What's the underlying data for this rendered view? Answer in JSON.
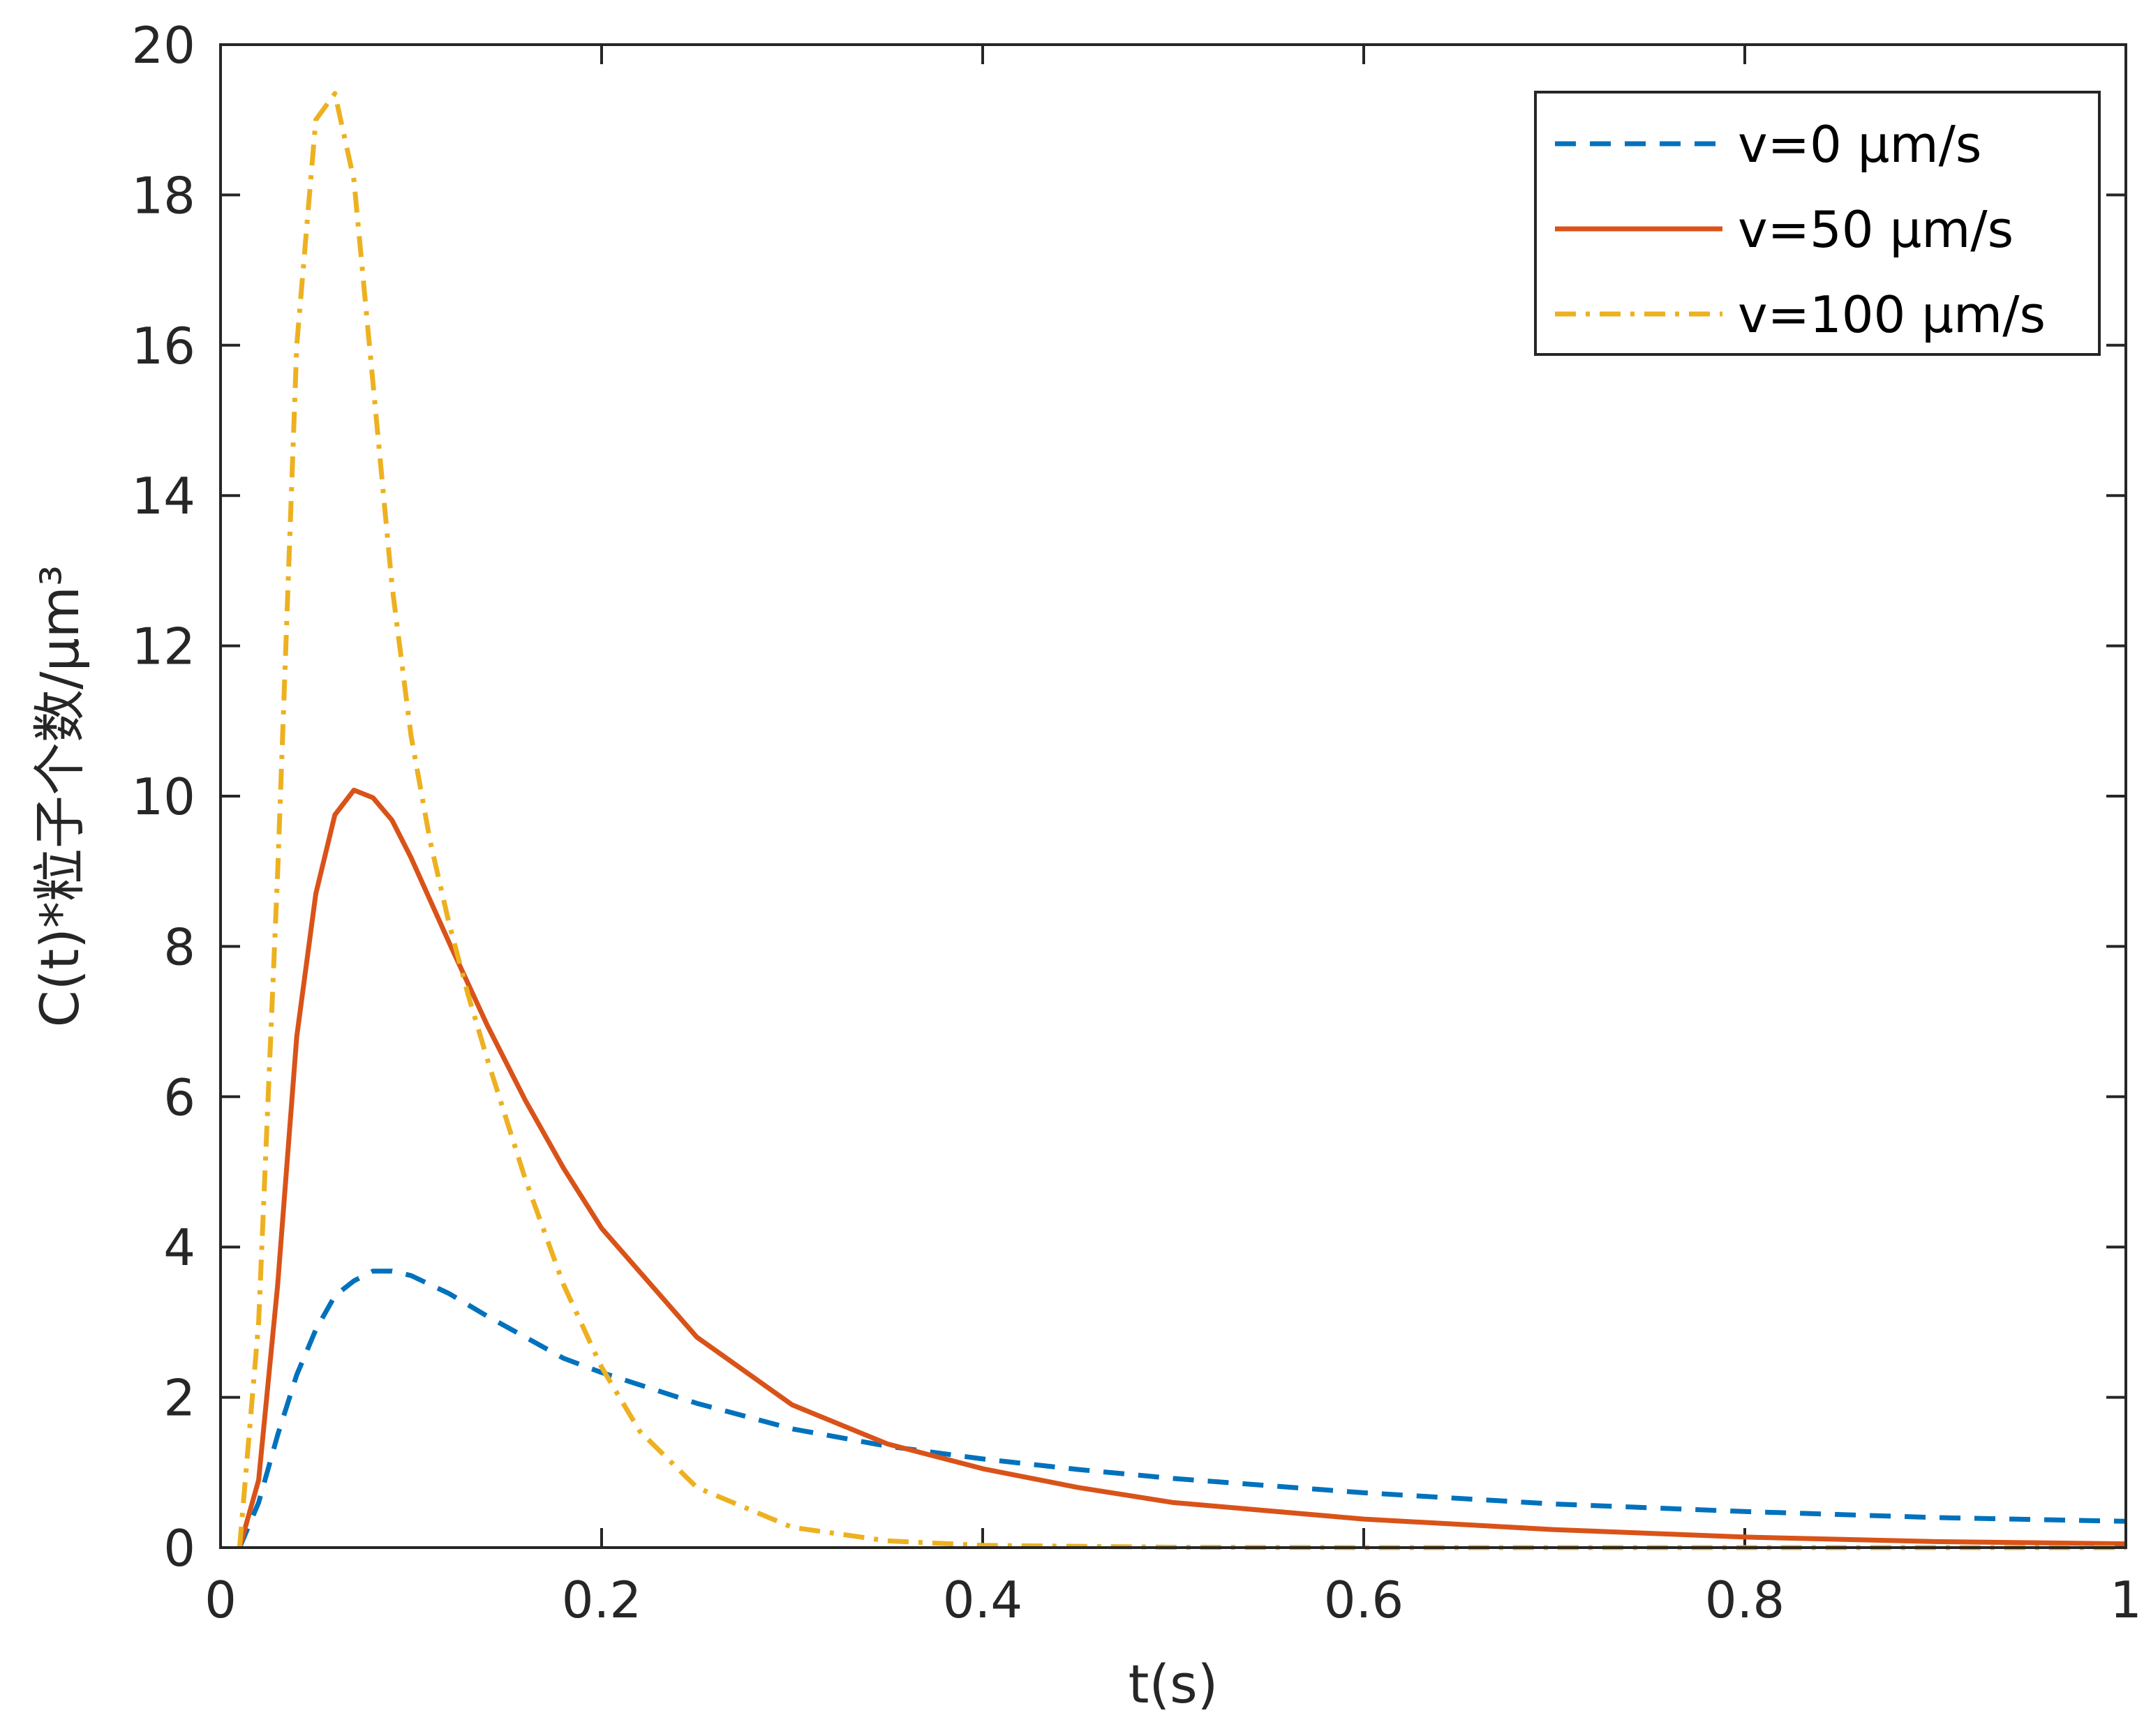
{
  "chart_data": {
    "type": "line",
    "xlabel": "t(s)",
    "ylabel": "C(t)*粒子个数/μm³",
    "xlim": [
      0,
      1
    ],
    "ylim": [
      0,
      20
    ],
    "x_ticks": [
      "0",
      "0.2",
      "0.4",
      "0.6",
      "0.8",
      "1"
    ],
    "y_ticks": [
      "0",
      "2",
      "4",
      "6",
      "8",
      "10",
      "12",
      "14",
      "16",
      "18",
      "20"
    ],
    "grid": false,
    "legend_position": "top-right",
    "series": [
      {
        "name": "v=0 μm/s",
        "color": "#0072BD",
        "style": "dashed",
        "x": [
          0.01,
          0.02,
          0.03,
          0.04,
          0.05,
          0.06,
          0.07,
          0.08,
          0.09,
          0.1,
          0.12,
          0.14,
          0.16,
          0.18,
          0.2,
          0.25,
          0.3,
          0.35,
          0.4,
          0.45,
          0.5,
          0.6,
          0.7,
          0.8,
          0.9,
          1.0
        ],
        "y": [
          0,
          0.6,
          1.5,
          2.3,
          2.9,
          3.35,
          3.55,
          3.68,
          3.68,
          3.62,
          3.38,
          3.08,
          2.8,
          2.52,
          2.33,
          1.92,
          1.58,
          1.35,
          1.18,
          1.04,
          0.92,
          0.73,
          0.58,
          0.48,
          0.4,
          0.35
        ]
      },
      {
        "name": "v=50 μm/s",
        "color": "#D95319",
        "style": "solid",
        "x": [
          0.01,
          0.02,
          0.03,
          0.04,
          0.05,
          0.06,
          0.07,
          0.08,
          0.09,
          0.1,
          0.12,
          0.14,
          0.16,
          0.18,
          0.2,
          0.25,
          0.3,
          0.35,
          0.4,
          0.45,
          0.5,
          0.6,
          0.7,
          0.8,
          0.9,
          1.0
        ],
        "y": [
          0,
          0.9,
          3.5,
          6.8,
          8.7,
          9.75,
          10.08,
          9.98,
          9.68,
          9.18,
          8.05,
          6.95,
          5.95,
          5.05,
          4.25,
          2.8,
          1.9,
          1.38,
          1.05,
          0.8,
          0.6,
          0.38,
          0.24,
          0.14,
          0.08,
          0.05
        ]
      },
      {
        "name": "v=100 μm/s",
        "color": "#EDB120",
        "style": "dashdot",
        "x": [
          0.01,
          0.02,
          0.03,
          0.04,
          0.05,
          0.06,
          0.07,
          0.08,
          0.09,
          0.1,
          0.11,
          0.12,
          0.13,
          0.14,
          0.16,
          0.18,
          0.2,
          0.22,
          0.25,
          0.3,
          0.35,
          0.4,
          0.5,
          0.6,
          0.8,
          1.0
        ],
        "y": [
          0,
          3.0,
          9.0,
          16.0,
          19.0,
          19.35,
          18.2,
          15.5,
          12.8,
          10.8,
          9.4,
          8.3,
          7.35,
          6.5,
          4.9,
          3.5,
          2.4,
          1.55,
          0.8,
          0.27,
          0.09,
          0.03,
          0.005,
          0.0,
          0.0,
          0.0
        ]
      }
    ]
  }
}
